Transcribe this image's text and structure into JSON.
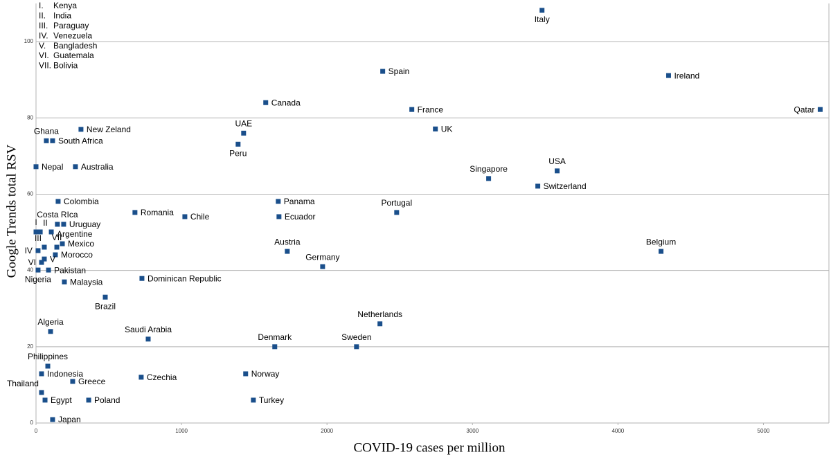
{
  "chart_data": {
    "type": "scatter",
    "x_label": "COVID-19 cases per million",
    "y_label": "Google Trends total RSV",
    "xlim": [
      0,
      5450
    ],
    "ylim": [
      0,
      110
    ],
    "xticks": [
      0,
      1000,
      2000,
      3000,
      4000,
      5000
    ],
    "yticks": [
      0,
      20,
      40,
      60,
      80,
      100
    ],
    "grid": true,
    "color": "#1a4f8b",
    "legend": [
      {
        "numeral": "I.",
        "name": "Kenya"
      },
      {
        "numeral": "II.",
        "name": "India"
      },
      {
        "numeral": "III.",
        "name": "Paraguay"
      },
      {
        "numeral": "IV.",
        "name": "Venezuela"
      },
      {
        "numeral": "V.",
        "name": "Bangladesh"
      },
      {
        "numeral": "VI.",
        "name": "Guatemala"
      },
      {
        "numeral": "VII.",
        "name": "Bolivia"
      }
    ],
    "point_labels": [
      "Italy",
      "Spain",
      "Ireland",
      "Canada",
      "France",
      "Qatar",
      "UK",
      "New Zeland",
      "UAE",
      "Ghana",
      "South Africa",
      "Peru",
      "Nepal",
      "Australia",
      "USA",
      "Singapore",
      "Switzerland",
      "Colombia",
      "Panama",
      "Romania",
      "Portugal",
      "Chile",
      "Ecuador",
      "I",
      "II",
      "Costa RIca",
      "Uruguay",
      "Argentine",
      "III",
      "Mexico",
      "VII",
      "IV",
      "Morocco",
      "V",
      "VI",
      "Nigeria",
      "Pakistan",
      "Austria",
      "Belgium",
      "Germany",
      "Dominican Republic",
      "Malaysia",
      "Brazil",
      "Netherlands",
      "Algeria",
      "Saudi Arabia",
      "Denmark",
      "Sweden",
      "Philippines",
      "Indonesia",
      "Czechia",
      "Norway",
      "Greece",
      "Thailand",
      "Egypt",
      "Poland",
      "Turkey",
      "Japan"
    ],
    "x": [
      3478,
      2383,
      4348,
      1579,
      2583,
      5390,
      2745,
      309,
      1427,
      71,
      114,
      1389,
      0,
      271,
      3582,
      3111,
      3449,
      152,
      1665,
      680,
      2479,
      1023,
      1670,
      0,
      29,
      147,
      190,
      105,
      57,
      181,
      143,
      14,
      133,
      57,
      38,
      14,
      86,
      1727,
      4296,
      1970,
      728,
      195,
      476,
      2364,
      100,
      771,
      1641,
      2203,
      81,
      38,
      723,
      1441,
      252,
      38,
      62,
      362,
      1494,
      114
    ],
    "values": [
      108.2,
      92.2,
      91.1,
      84.0,
      82.2,
      82.2,
      77.1,
      77.0,
      76.0,
      74.0,
      74.0,
      73.1,
      67.2,
      67.2,
      66.1,
      64.1,
      62.1,
      58.1,
      58.1,
      55.2,
      55.2,
      54.1,
      54.1,
      50.1,
      50.1,
      52.1,
      52.1,
      50.1,
      46.1,
      47.0,
      46.1,
      45.2,
      44.1,
      43.0,
      42.1,
      40.1,
      40.1,
      45.0,
      45.0,
      41.0,
      37.9,
      37.0,
      33.0,
      26.0,
      24.0,
      22.0,
      20.0,
      20.0,
      14.9,
      12.9,
      12.0,
      12.9,
      10.9,
      8.0,
      6.0,
      6.0,
      6.0,
      0.9
    ]
  }
}
